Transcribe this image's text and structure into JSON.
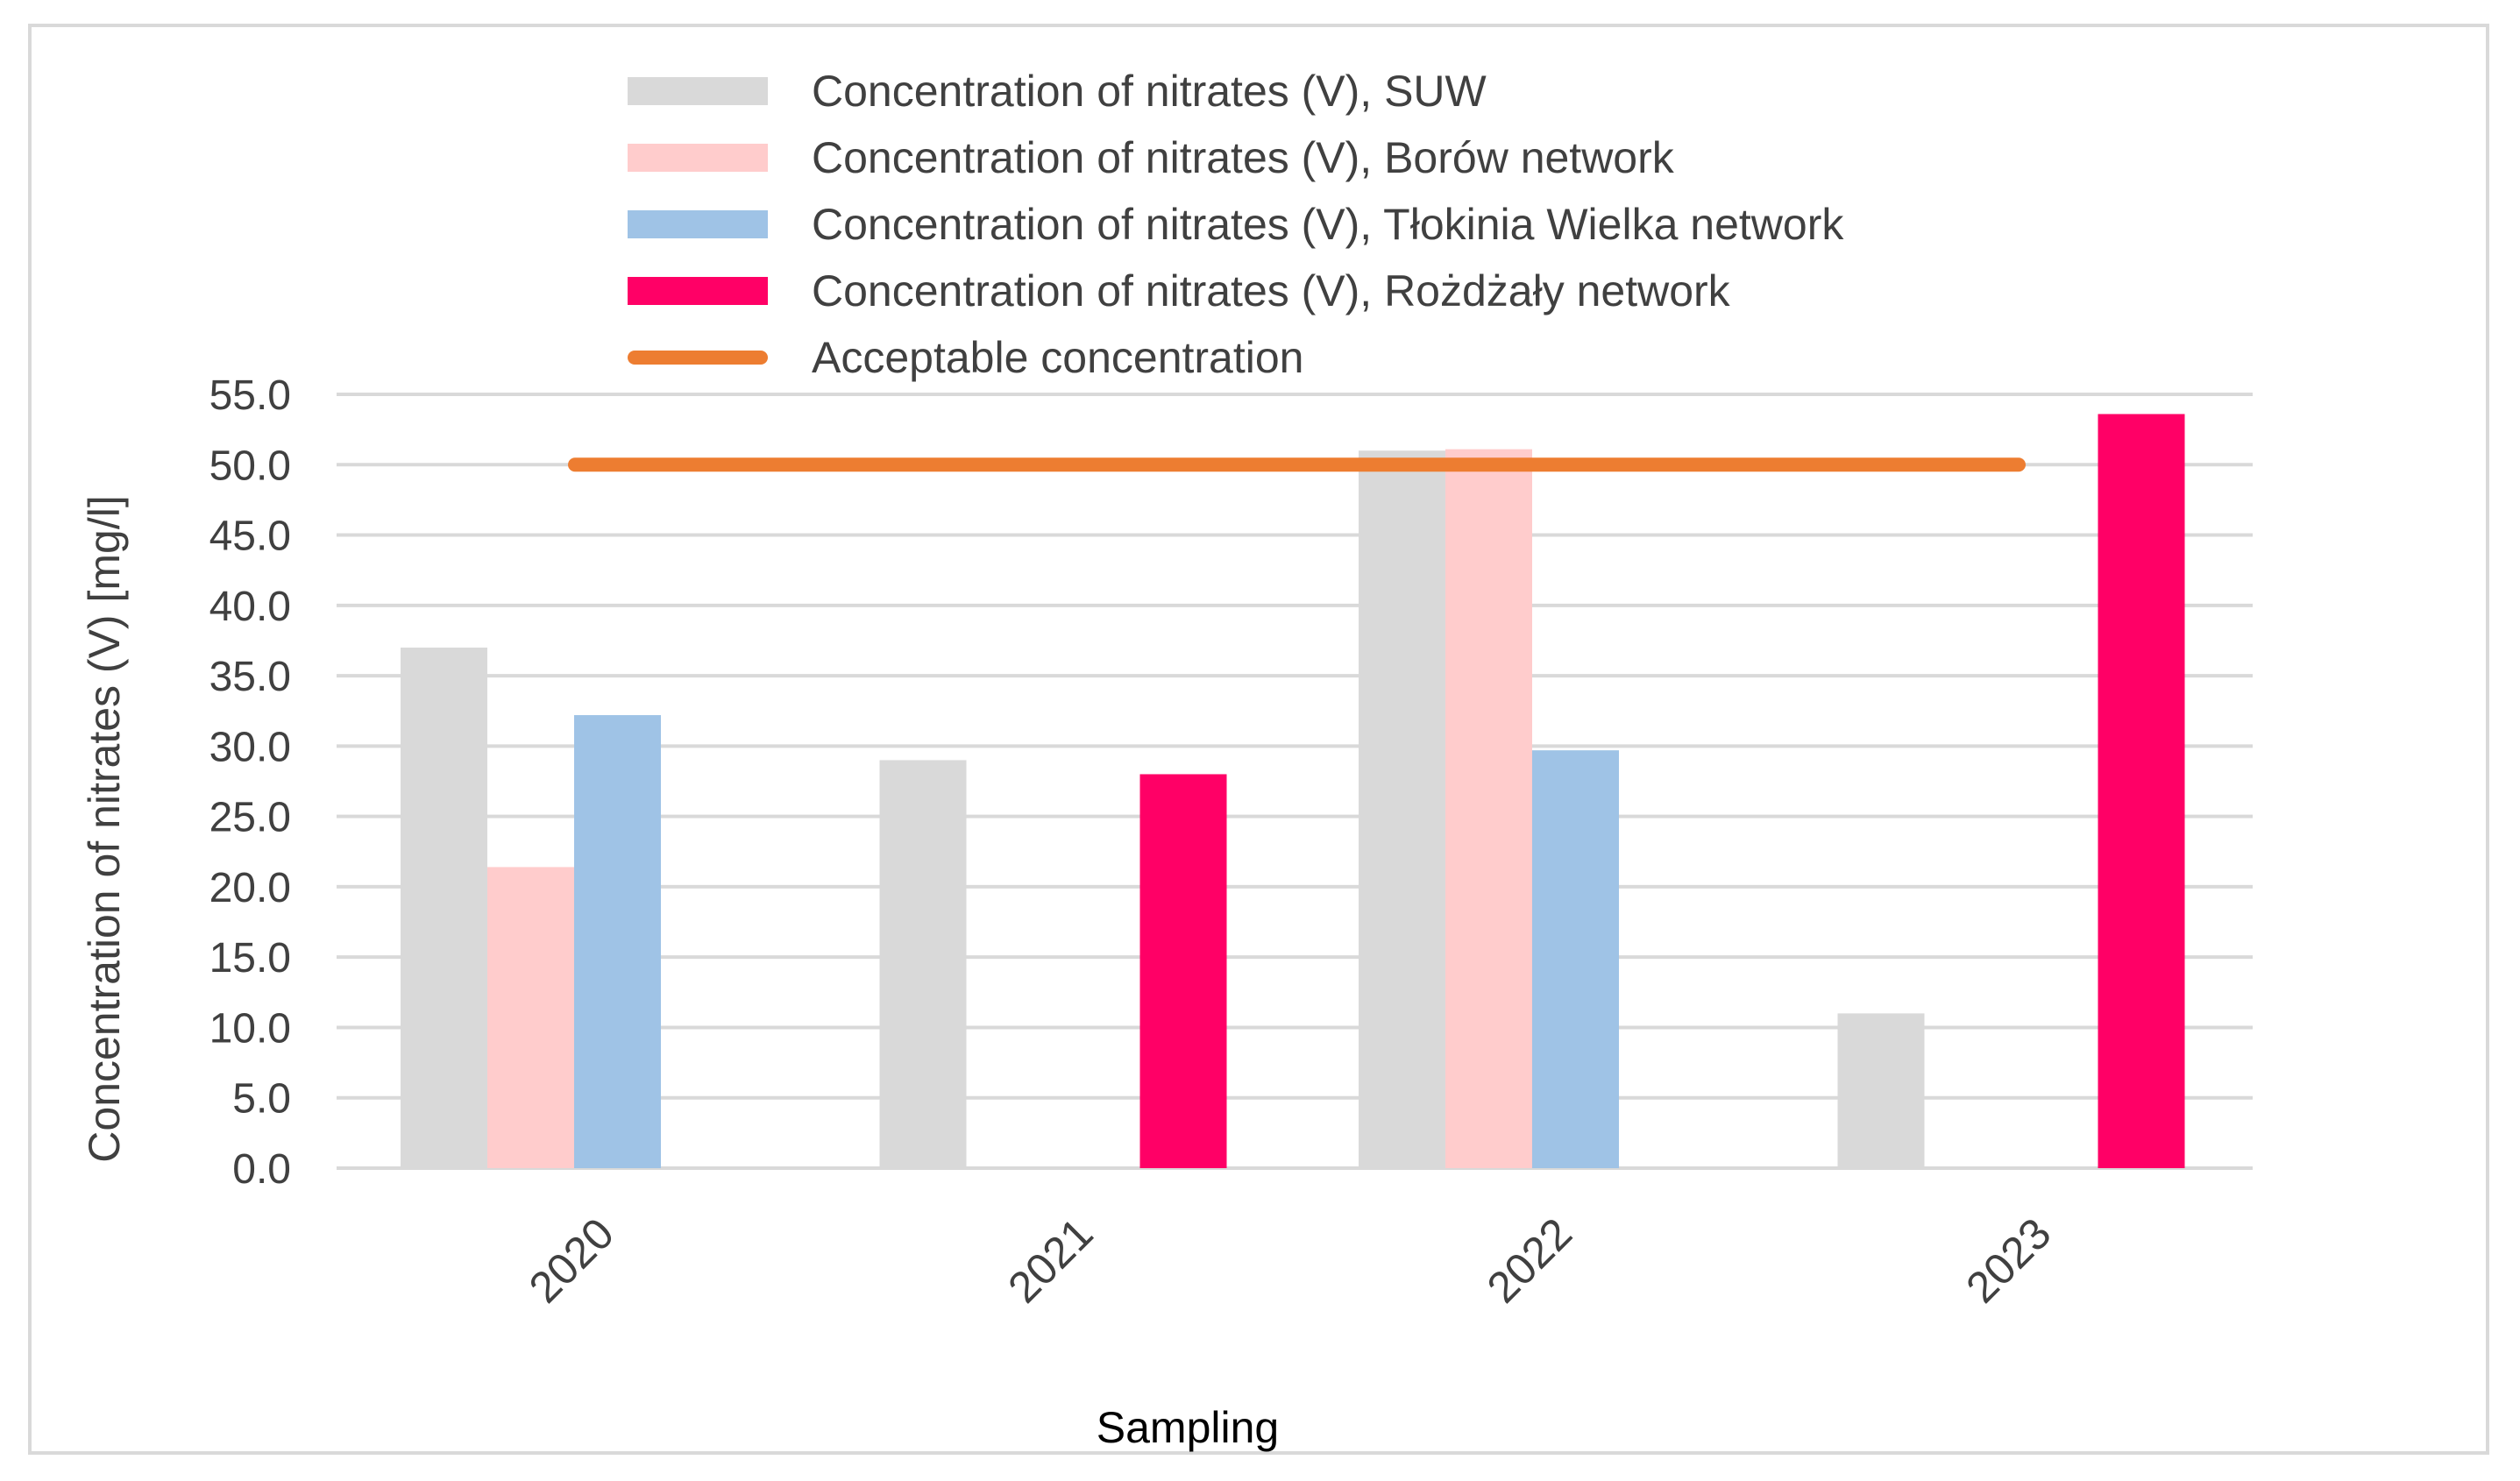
{
  "chart_data": {
    "type": "bar",
    "title": "",
    "xlabel": "Sampling",
    "ylabel": "Concentration of nitrates (V) [mg/l]",
    "ylim": [
      0,
      55
    ],
    "yticks": [
      "0.0",
      "5.0",
      "10.0",
      "15.0",
      "20.0",
      "25.0",
      "30.0",
      "35.0",
      "40.0",
      "45.0",
      "50.0",
      "55.0"
    ],
    "grid": true,
    "legend_position": "top",
    "categories": [
      "2020",
      "2021",
      "2022",
      "2023"
    ],
    "series": [
      {
        "name": "Concentration of nitrates (V), SUW",
        "color": "#d9d9d9",
        "values": [
          37.0,
          29.0,
          51.0,
          11.0
        ]
      },
      {
        "name": "Concentration of nitrates (V), Borów network",
        "color": "#ffcccc",
        "values": [
          21.4,
          null,
          51.1,
          null
        ]
      },
      {
        "name": "Concentration of nitrates (V), Tłokinia Wielka network",
        "color": "#9fc3e6",
        "values": [
          32.2,
          null,
          29.7,
          null
        ]
      },
      {
        "name": "Concentration of nitrates (V), Rożdżały network",
        "color": "#ff0066",
        "values": [
          null,
          28.0,
          null,
          53.6
        ]
      }
    ],
    "reference_line": {
      "name": "Acceptable concentration",
      "value": 50,
      "color": "#ed7d31"
    }
  }
}
